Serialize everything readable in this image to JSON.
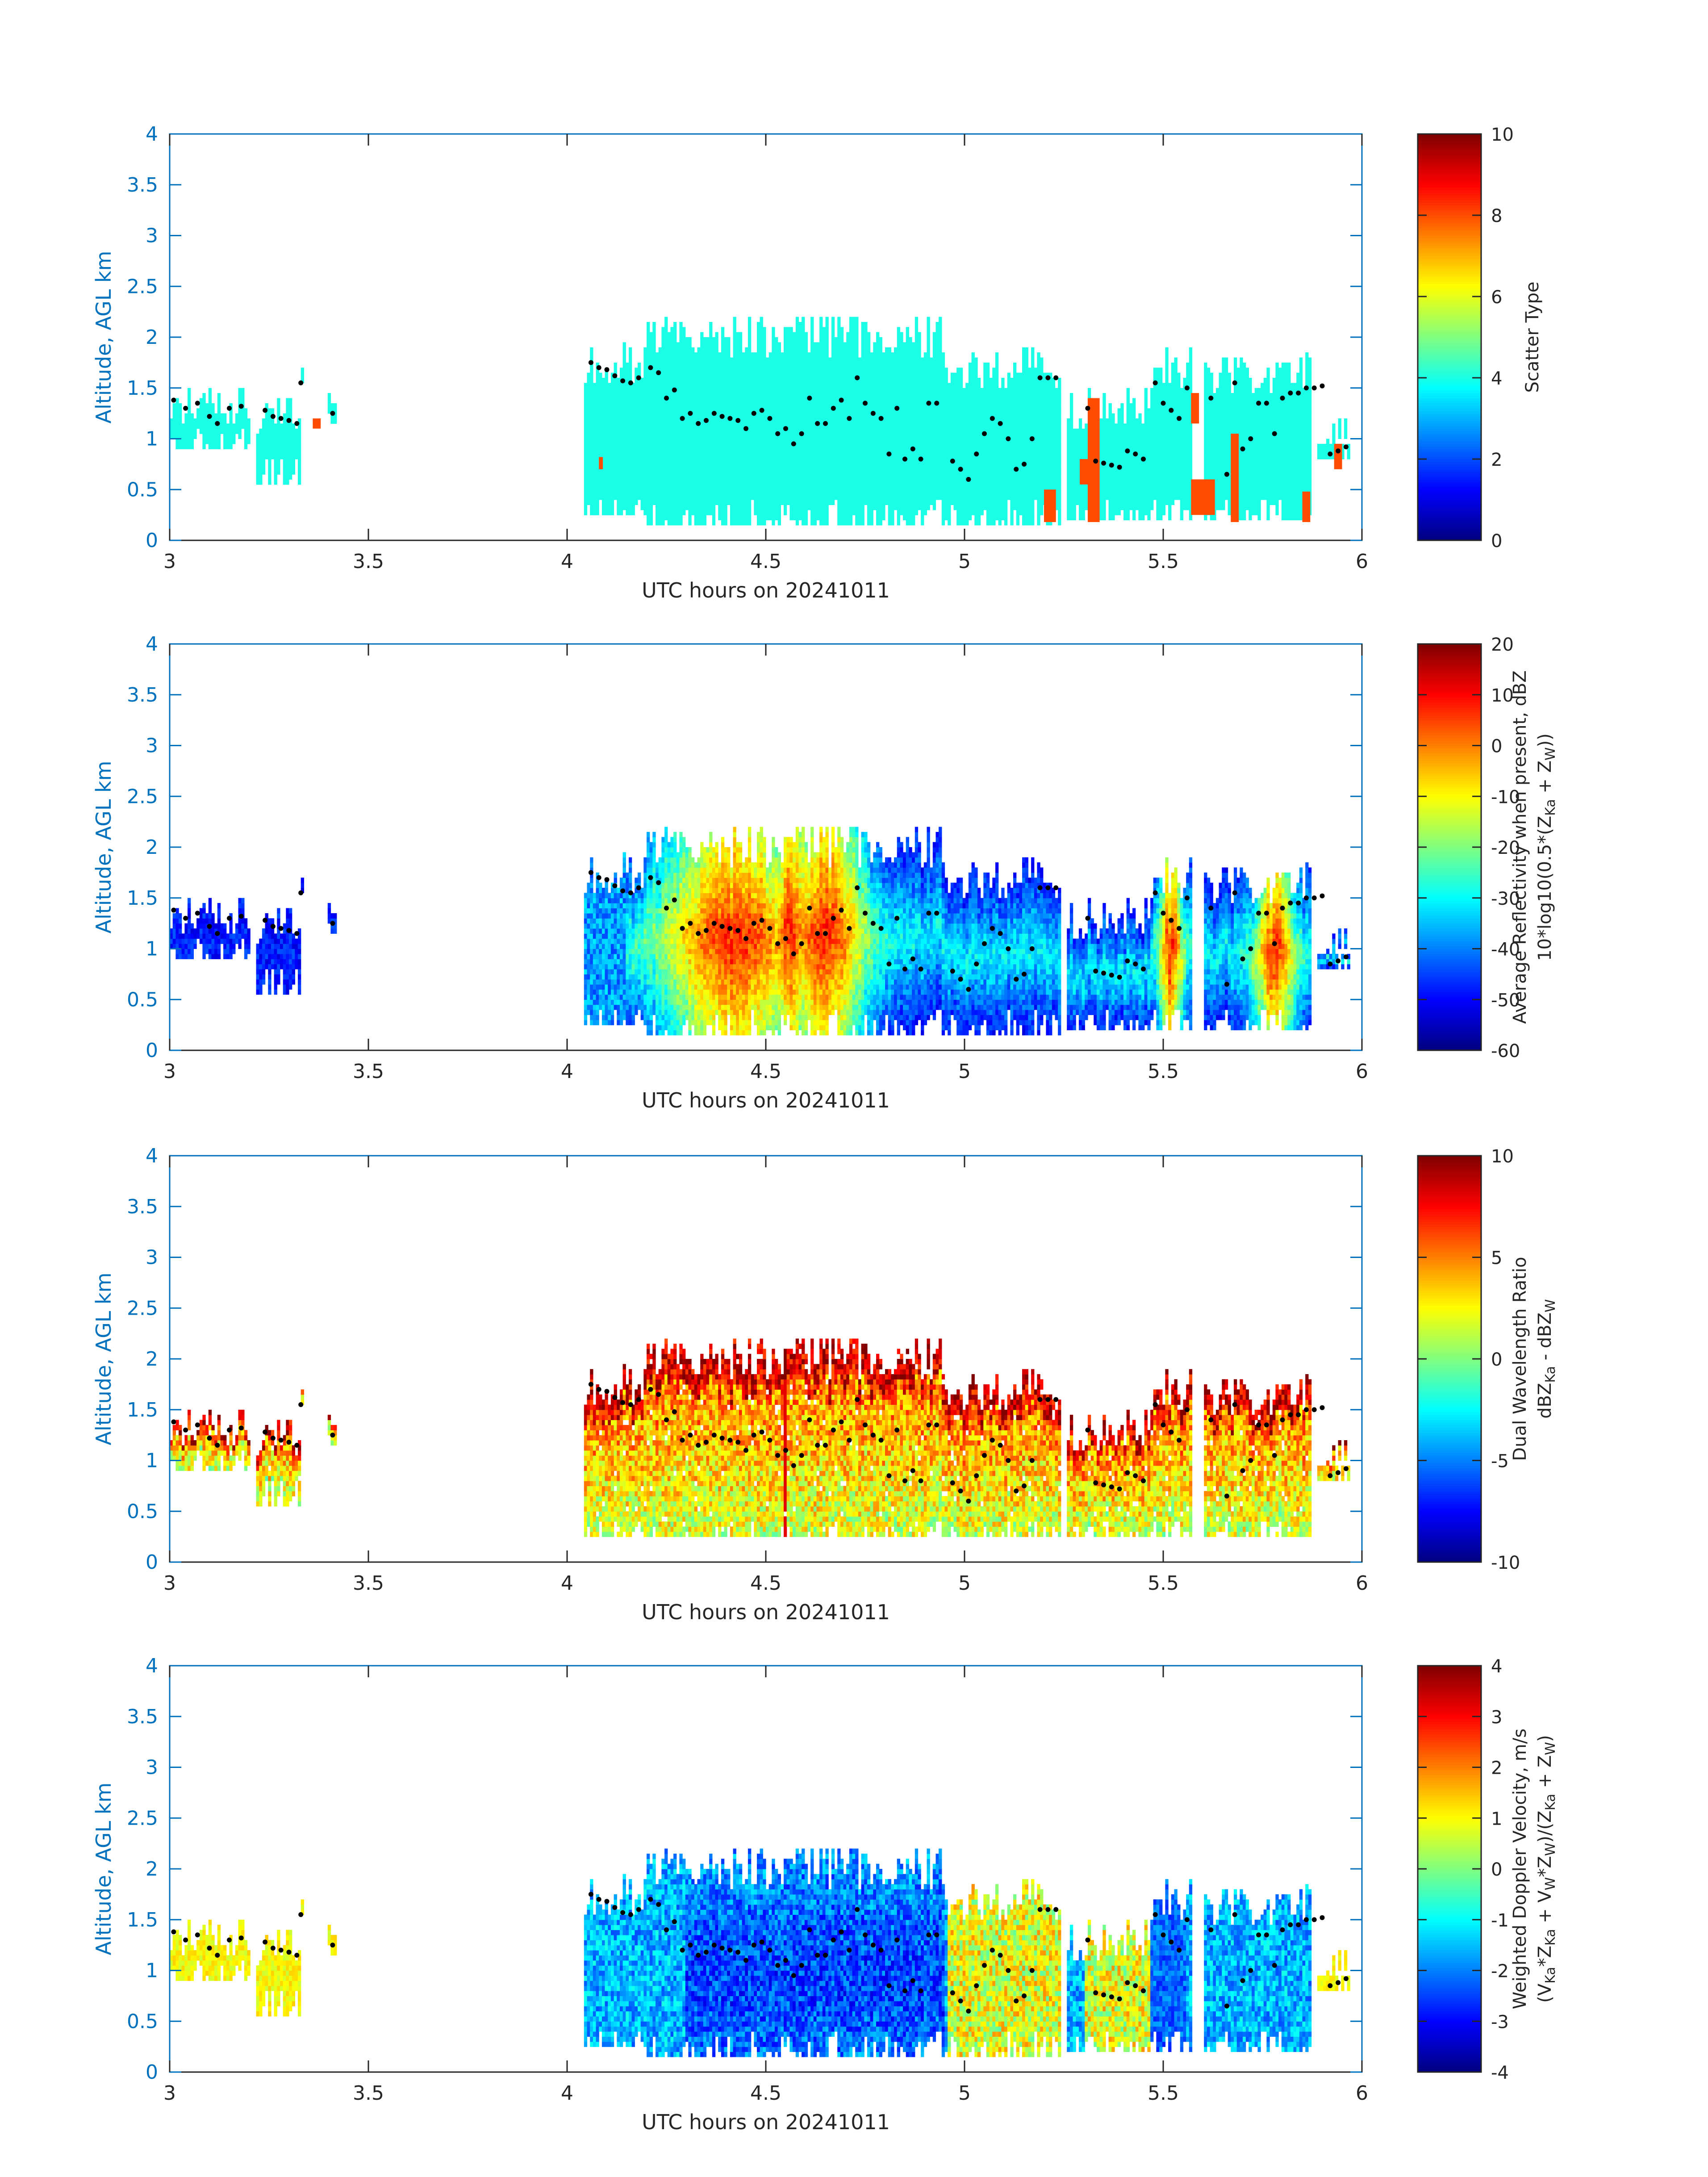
{
  "figure": {
    "type": "heatmap",
    "x_ticks": [
      "3",
      "3.5",
      "4",
      "4.5",
      "5",
      "5.5",
      "6"
    ],
    "y_ticks": [
      "0",
      "0.5",
      "1",
      "1.5",
      "2",
      "2.5",
      "3",
      "3.5",
      "4"
    ]
  },
  "chart_data": [
    {
      "type": "heatmap",
      "xlabel": "UTC hours on 20241011",
      "ylabel": "Altitude, AGL km",
      "xlim": [
        3,
        6
      ],
      "ylim": [
        0,
        4
      ],
      "colorbar": {
        "label_lines": [
          "Scatter Type"
        ],
        "limits": [
          0,
          10
        ],
        "ticks": [
          "0",
          "2",
          "4",
          "6",
          "8",
          "10"
        ],
        "colormap": "jet"
      },
      "mode": "scatter",
      "grid": false
    },
    {
      "type": "heatmap",
      "xlabel": "UTC hours on 20241011",
      "ylabel": "Altitude, AGL km",
      "xlim": [
        3,
        6
      ],
      "ylim": [
        0,
        4
      ],
      "colorbar": {
        "label_lines": [
          "Average Reflectivity when present, dBZ",
          "10*log10(0.5*(Z_Ka + Z_W))"
        ],
        "limits": [
          -60,
          20
        ],
        "ticks": [
          "-60",
          "-50",
          "-40",
          "-30",
          "-20",
          "-10",
          "0",
          "10",
          "20"
        ],
        "colormap": "jet"
      },
      "mode": "refl",
      "grid": false
    },
    {
      "type": "heatmap",
      "xlabel": "UTC hours on 20241011",
      "ylabel": "Altitude, AGL km",
      "xlim": [
        3,
        6
      ],
      "ylim": [
        0,
        4
      ],
      "colorbar": {
        "label_lines": [
          "Dual Wavelength Ratio",
          "dBZ_Ka - dBZ_W"
        ],
        "limits": [
          -10,
          10
        ],
        "ticks": [
          "-10",
          "-5",
          "0",
          "5",
          "10"
        ],
        "colormap": "jet"
      },
      "mode": "dwr",
      "grid": false
    },
    {
      "type": "heatmap",
      "xlabel": "UTC hours on 20241011",
      "ylabel": "Altitude, AGL km",
      "xlim": [
        3,
        6
      ],
      "ylim": [
        0,
        4
      ],
      "colorbar": {
        "label_lines": [
          "Weighted Doppler Velocity, m/s",
          "(V_Ka*Z_Ka + V_W*Z_W)/(Z_Ka + Z_W)"
        ],
        "limits": [
          -4,
          4
        ],
        "ticks": [
          "-4",
          "-3",
          "-2",
          "-1",
          "0",
          "1",
          "2",
          "3",
          "4"
        ],
        "colormap": "jet"
      },
      "mode": "vel",
      "grid": false
    }
  ],
  "cloud_columns": [
    {
      "t0": 3.0,
      "t1": 3.2,
      "base": 0.9,
      "top": 1.5,
      "xsec": [
        [
          3.02,
          3.05,
          0.85,
          1.4
        ]
      ]
    },
    {
      "t0": 3.22,
      "t1": 3.33,
      "base": 0.6,
      "top": 1.45,
      "xsec": []
    },
    {
      "t0": 3.33,
      "t1": 3.34,
      "base": 1.55,
      "top": 1.65,
      "xsec": []
    },
    {
      "t0": 3.4,
      "t1": 3.42,
      "base": 1.2,
      "top": 1.35,
      "xsec": []
    },
    {
      "t0": 4.04,
      "t1": 4.2,
      "base": 0.3,
      "top": 1.95,
      "xsec": []
    },
    {
      "t0": 4.2,
      "t1": 4.94,
      "base": 0.18,
      "top": 2.2,
      "xsec": []
    },
    {
      "t0": 4.94,
      "t1": 5.24,
      "base": 0.18,
      "top": 1.9,
      "xsec": []
    },
    {
      "t0": 5.26,
      "t1": 5.47,
      "base": 0.2,
      "top": 1.5,
      "xsec": []
    },
    {
      "t0": 5.47,
      "t1": 5.57,
      "base": 0.2,
      "top": 1.9,
      "xsec": []
    },
    {
      "t0": 5.6,
      "t1": 5.87,
      "base": 0.2,
      "top": 1.85,
      "xsec": []
    },
    {
      "t0": 5.89,
      "t1": 5.97,
      "base": 0.8,
      "top": 1.2,
      "xsec": []
    }
  ],
  "scatter_specks": [
    {
      "t0": 3.36,
      "t1": 3.38,
      "a0": 1.1,
      "a1": 1.2
    },
    {
      "t0": 4.08,
      "t1": 4.09,
      "a0": 0.7,
      "a1": 0.82
    },
    {
      "t0": 5.2,
      "t1": 5.23,
      "a0": 0.18,
      "a1": 0.5
    },
    {
      "t0": 5.29,
      "t1": 5.32,
      "a0": 0.55,
      "a1": 0.8
    },
    {
      "t0": 5.31,
      "t1": 5.34,
      "a0": 0.18,
      "a1": 1.4
    },
    {
      "t0": 5.57,
      "t1": 5.59,
      "a0": 1.15,
      "a1": 1.45
    },
    {
      "t0": 5.57,
      "t1": 5.63,
      "a0": 0.25,
      "a1": 0.6
    },
    {
      "t0": 5.67,
      "t1": 5.69,
      "a0": 0.18,
      "a1": 1.05
    },
    {
      "t0": 5.85,
      "t1": 5.87,
      "a0": 0.18,
      "a1": 0.48
    },
    {
      "t0": 5.93,
      "t1": 5.95,
      "a0": 0.7,
      "a1": 0.95
    }
  ],
  "cloud_base_points": [
    [
      3.01,
      1.38
    ],
    [
      3.04,
      1.3
    ],
    [
      3.07,
      1.35
    ],
    [
      3.1,
      1.22
    ],
    [
      3.12,
      1.15
    ],
    [
      3.15,
      1.3
    ],
    [
      3.18,
      1.32
    ],
    [
      3.24,
      1.28
    ],
    [
      3.26,
      1.22
    ],
    [
      3.28,
      1.2
    ],
    [
      3.3,
      1.18
    ],
    [
      3.32,
      1.15
    ],
    [
      3.33,
      1.55
    ],
    [
      3.41,
      1.25
    ],
    [
      4.06,
      1.75
    ],
    [
      4.08,
      1.7
    ],
    [
      4.1,
      1.68
    ],
    [
      4.12,
      1.62
    ],
    [
      4.14,
      1.57
    ],
    [
      4.16,
      1.55
    ],
    [
      4.18,
      1.6
    ],
    [
      4.21,
      1.7
    ],
    [
      4.23,
      1.65
    ],
    [
      4.25,
      1.4
    ],
    [
      4.27,
      1.48
    ],
    [
      4.29,
      1.2
    ],
    [
      4.31,
      1.25
    ],
    [
      4.33,
      1.15
    ],
    [
      4.35,
      1.18
    ],
    [
      4.37,
      1.25
    ],
    [
      4.39,
      1.22
    ],
    [
      4.41,
      1.2
    ],
    [
      4.43,
      1.18
    ],
    [
      4.45,
      1.1
    ],
    [
      4.47,
      1.25
    ],
    [
      4.49,
      1.28
    ],
    [
      4.51,
      1.2
    ],
    [
      4.53,
      1.05
    ],
    [
      4.55,
      1.1
    ],
    [
      4.57,
      0.95
    ],
    [
      4.59,
      1.05
    ],
    [
      4.61,
      1.4
    ],
    [
      4.63,
      1.15
    ],
    [
      4.65,
      1.15
    ],
    [
      4.67,
      1.3
    ],
    [
      4.69,
      1.38
    ],
    [
      4.71,
      1.2
    ],
    [
      4.73,
      1.6
    ],
    [
      4.75,
      1.35
    ],
    [
      4.77,
      1.25
    ],
    [
      4.79,
      1.2
    ],
    [
      4.81,
      0.85
    ],
    [
      4.83,
      1.3
    ],
    [
      4.85,
      0.8
    ],
    [
      4.87,
      0.9
    ],
    [
      4.89,
      0.8
    ],
    [
      4.91,
      1.35
    ],
    [
      4.93,
      1.35
    ],
    [
      4.97,
      0.78
    ],
    [
      4.99,
      0.7
    ],
    [
      5.01,
      0.6
    ],
    [
      5.03,
      0.85
    ],
    [
      5.05,
      1.05
    ],
    [
      5.07,
      1.2
    ],
    [
      5.09,
      1.15
    ],
    [
      5.11,
      1.0
    ],
    [
      5.13,
      0.7
    ],
    [
      5.15,
      0.75
    ],
    [
      5.17,
      1.0
    ],
    [
      5.19,
      1.6
    ],
    [
      5.21,
      1.6
    ],
    [
      5.23,
      1.6
    ],
    [
      5.31,
      1.3
    ],
    [
      5.33,
      0.78
    ],
    [
      5.35,
      0.76
    ],
    [
      5.37,
      0.74
    ],
    [
      5.39,
      0.72
    ],
    [
      5.41,
      0.88
    ],
    [
      5.43,
      0.85
    ],
    [
      5.45,
      0.8
    ],
    [
      5.48,
      1.55
    ],
    [
      5.5,
      1.35
    ],
    [
      5.52,
      1.28
    ],
    [
      5.54,
      1.2
    ],
    [
      5.56,
      1.5
    ],
    [
      5.62,
      1.4
    ],
    [
      5.66,
      0.65
    ],
    [
      5.68,
      1.55
    ],
    [
      5.7,
      0.9
    ],
    [
      5.72,
      1.0
    ],
    [
      5.74,
      1.35
    ],
    [
      5.76,
      1.35
    ],
    [
      5.78,
      1.05
    ],
    [
      5.8,
      1.4
    ],
    [
      5.82,
      1.45
    ],
    [
      5.84,
      1.45
    ],
    [
      5.86,
      1.5
    ],
    [
      5.88,
      1.5
    ],
    [
      5.9,
      1.52
    ],
    [
      5.92,
      0.85
    ],
    [
      5.94,
      0.88
    ],
    [
      5.96,
      0.92
    ]
  ]
}
